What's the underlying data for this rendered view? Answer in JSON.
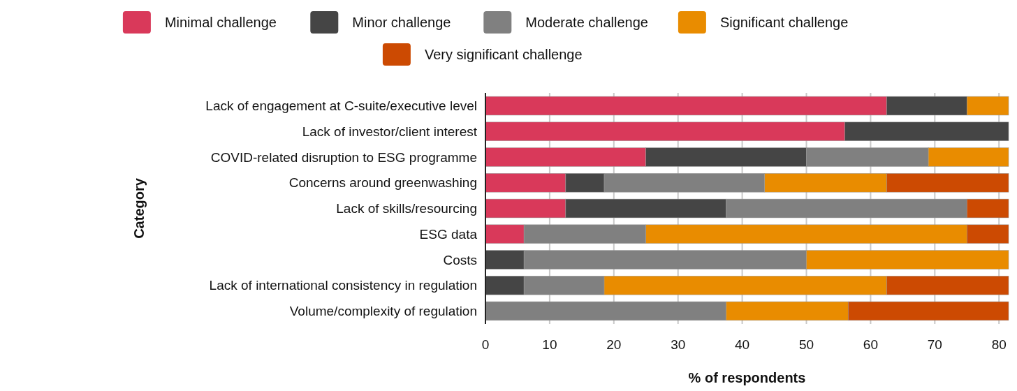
{
  "chart_data": {
    "type": "bar",
    "orientation": "horizontal",
    "stacked": true,
    "xlabel": "% of respondents",
    "ylabel": "Category",
    "categories": [
      "Lack of engagement at C-suite/executive level",
      "Lack of investor/client interest",
      "COVID-related disruption to ESG programme",
      "Concerns around greenwashing",
      "Lack of skills/resourcing",
      "ESG data",
      "Costs",
      "Lack of international consistency in regulation",
      "Volume/complexity of regulation"
    ],
    "series": [
      {
        "name": "Minimal challenge",
        "color": "#d9395a",
        "values": [
          62.5,
          56,
          25,
          12.5,
          12.5,
          6,
          null,
          null,
          null
        ]
      },
      {
        "name": "Minor challenge",
        "color": "#454545",
        "values": [
          12.5,
          25.5,
          25,
          6,
          25,
          null,
          6,
          6,
          null
        ]
      },
      {
        "name": "Moderate challenge",
        "color": "#808080",
        "values": [
          null,
          null,
          19,
          25,
          37.5,
          19,
          44,
          12.5,
          37.5
        ]
      },
      {
        "name": "Significant challenge",
        "color": "#e98c00",
        "values": [
          6.5,
          null,
          12.5,
          19,
          null,
          50,
          31.5,
          44,
          19
        ]
      },
      {
        "name": "Very significant challenge",
        "color": "#cc4a02",
        "values": [
          null,
          null,
          null,
          19,
          6.5,
          6.5,
          null,
          19,
          25
        ]
      }
    ],
    "xlim": [
      0,
      81.5
    ],
    "xticks": [
      0,
      10,
      20,
      30,
      40,
      50,
      60,
      70,
      80
    ],
    "grid": "x",
    "legend": "top"
  }
}
